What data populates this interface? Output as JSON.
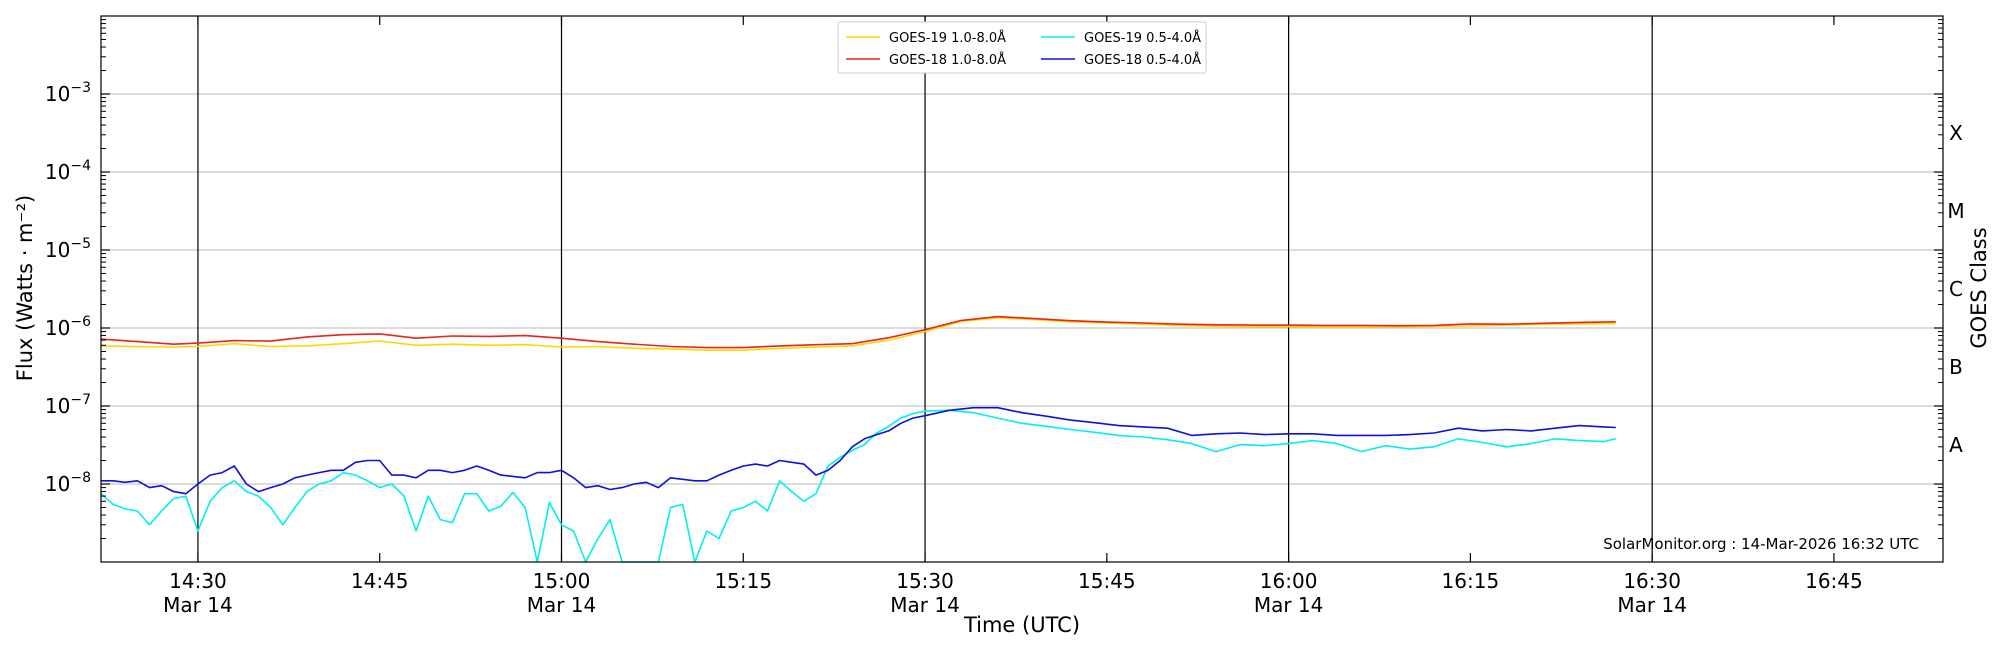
{
  "chart_data": {
    "type": "line",
    "xlabel": "Time (UTC)",
    "ylabel": "Flux (Watts · m⁻²)",
    "right_ylabel": "GOES Class",
    "credit": "SolarMonitor.org : 14-Mar-2026 16:32 UTC",
    "x_start": "14:22",
    "x_end": "16:54",
    "log_scale_y": true,
    "ylim": [
      1e-09,
      0.01
    ],
    "grid": "horizontal",
    "legend_placement": "top-center",
    "x_ticks": [
      {
        "t": "14:30",
        "line1": "14:30",
        "line2": "Mar 14",
        "vline": true
      },
      {
        "t": "14:45",
        "line1": "14:45",
        "line2": "",
        "vline": false
      },
      {
        "t": "15:00",
        "line1": "15:00",
        "line2": "Mar 14",
        "vline": true
      },
      {
        "t": "15:15",
        "line1": "15:15",
        "line2": "",
        "vline": false
      },
      {
        "t": "15:30",
        "line1": "15:30",
        "line2": "Mar 14",
        "vline": true
      },
      {
        "t": "15:45",
        "line1": "15:45",
        "line2": "",
        "vline": false
      },
      {
        "t": "16:00",
        "line1": "16:00",
        "line2": "Mar 14",
        "vline": true
      },
      {
        "t": "16:15",
        "line1": "16:15",
        "line2": "",
        "vline": false
      },
      {
        "t": "16:30",
        "line1": "16:30",
        "line2": "Mar 14",
        "vline": true
      },
      {
        "t": "16:45",
        "line1": "16:45",
        "line2": "",
        "vline": false
      }
    ],
    "y_ticks": [
      {
        "exp": -3,
        "label": "10−3"
      },
      {
        "exp": -4,
        "label": "10−4"
      },
      {
        "exp": -5,
        "label": "10−5"
      },
      {
        "exp": -6,
        "label": "10−6"
      },
      {
        "exp": -7,
        "label": "10−7"
      },
      {
        "exp": -8,
        "label": "10−8"
      }
    ],
    "goes_classes": [
      {
        "label": "X",
        "exp": -3.5
      },
      {
        "label": "M",
        "exp": -4.5
      },
      {
        "label": "C",
        "exp": -5.5
      },
      {
        "label": "B",
        "exp": -6.5
      },
      {
        "label": "A",
        "exp": -7.5
      }
    ],
    "series": [
      {
        "name": "GOES-19 1.0-8.0Å",
        "color": "#FFD700",
        "x": [
          "14:22",
          "14:25",
          "14:28",
          "14:30",
          "14:33",
          "14:36",
          "14:39",
          "14:42",
          "14:45",
          "14:48",
          "14:51",
          "14:54",
          "14:57",
          "15:00",
          "15:03",
          "15:06",
          "15:09",
          "15:12",
          "15:15",
          "15:18",
          "15:21",
          "15:24",
          "15:27",
          "15:30",
          "15:33",
          "15:36",
          "15:39",
          "15:42",
          "15:45",
          "15:48",
          "15:51",
          "15:54",
          "15:57",
          "16:00",
          "16:03",
          "16:06",
          "16:09",
          "16:12",
          "16:15",
          "16:18",
          "16:21",
          "16:24",
          "16:27"
        ],
        "y": [
          5.9e-07,
          5.8e-07,
          5.7e-07,
          5.8e-07,
          6.3e-07,
          5.8e-07,
          5.9e-07,
          6.3e-07,
          6.8e-07,
          6e-07,
          6.2e-07,
          6e-07,
          6.1e-07,
          5.7e-07,
          5.8e-07,
          5.5e-07,
          5.4e-07,
          5.2e-07,
          5.2e-07,
          5.5e-07,
          5.7e-07,
          5.9e-07,
          7e-07,
          9e-07,
          1.22e-06,
          1.35e-06,
          1.28e-06,
          1.2e-06,
          1.16e-06,
          1.12e-06,
          1.08e-06,
          1.05e-06,
          1.04e-06,
          1.04e-06,
          1.03e-06,
          1.03e-06,
          1.04e-06,
          1.05e-06,
          1.06e-06,
          1.09e-06,
          1.12e-06,
          1.13e-06,
          1.14e-06
        ]
      },
      {
        "name": "GOES-18 1.0-8.0Å",
        "color": "#E8251C",
        "x": [
          "14:22",
          "14:25",
          "14:28",
          "14:30",
          "14:33",
          "14:36",
          "14:39",
          "14:42",
          "14:45",
          "14:48",
          "14:51",
          "14:54",
          "14:57",
          "15:00",
          "15:03",
          "15:06",
          "15:09",
          "15:12",
          "15:15",
          "15:18",
          "15:21",
          "15:24",
          "15:27",
          "15:30",
          "15:33",
          "15:36",
          "15:39",
          "15:42",
          "15:45",
          "15:48",
          "15:51",
          "15:54",
          "15:57",
          "16:00",
          "16:03",
          "16:06",
          "16:09",
          "16:12",
          "16:15",
          "16:18",
          "16:21",
          "16:24",
          "16:27"
        ],
        "y": [
          7.2e-07,
          6.7e-07,
          6.2e-07,
          6.4e-07,
          6.9e-07,
          6.8e-07,
          7.7e-07,
          8.2e-07,
          8.4e-07,
          7.4e-07,
          7.9e-07,
          7.8e-07,
          8e-07,
          7.4e-07,
          6.7e-07,
          6.2e-07,
          5.8e-07,
          5.6e-07,
          5.6e-07,
          5.9e-07,
          6.1e-07,
          6.3e-07,
          7.5e-07,
          9.5e-07,
          1.25e-06,
          1.4e-06,
          1.32e-06,
          1.24e-06,
          1.19e-06,
          1.16e-06,
          1.12e-06,
          1.1e-06,
          1.09e-06,
          1.09e-06,
          1.08e-06,
          1.08e-06,
          1.07e-06,
          1.08e-06,
          1.13e-06,
          1.12e-06,
          1.15e-06,
          1.18e-06,
          1.2e-06
        ]
      },
      {
        "name": "GOES-19 0.5-4.0Å",
        "color": "#00F0F0",
        "x": [
          "14:22",
          "14:23",
          "14:24",
          "14:25",
          "14:26",
          "14:27",
          "14:28",
          "14:29",
          "14:30",
          "14:31",
          "14:32",
          "14:33",
          "14:34",
          "14:35",
          "14:36",
          "14:37",
          "14:38",
          "14:39",
          "14:40",
          "14:41",
          "14:42",
          "14:43",
          "14:44",
          "14:45",
          "14:46",
          "14:47",
          "14:48",
          "14:49",
          "14:50",
          "14:51",
          "14:52",
          "14:53",
          "14:54",
          "14:55",
          "14:56",
          "14:57",
          "14:58",
          "14:59",
          "15:00",
          "15:01",
          "15:02",
          "15:03",
          "15:04",
          "15:05",
          "15:06",
          "15:07",
          "15:08",
          "15:09",
          "15:10",
          "15:11",
          "15:12",
          "15:13",
          "15:14",
          "15:15",
          "15:16",
          "15:17",
          "15:18",
          "15:19",
          "15:20",
          "15:21",
          "15:22",
          "15:23",
          "15:24",
          "15:25",
          "15:26",
          "15:27",
          "15:28",
          "15:29",
          "15:30",
          "15:32",
          "15:34",
          "15:36",
          "15:38",
          "15:40",
          "15:42",
          "15:44",
          "15:46",
          "15:48",
          "15:50",
          "15:52",
          "15:54",
          "15:56",
          "15:58",
          "16:00",
          "16:02",
          "16:04",
          "16:06",
          "16:08",
          "16:10",
          "16:12",
          "16:14",
          "16:16",
          "16:18",
          "16:20",
          "16:22",
          "16:24",
          "16:26",
          "16:27"
        ],
        "y": [
          7.5e-09,
          5.5e-09,
          4.8e-09,
          4.5e-09,
          3e-09,
          4.5e-09,
          6.5e-09,
          7e-09,
          2.5e-09,
          6e-09,
          9e-09,
          1.1e-08,
          8e-09,
          7e-09,
          5e-09,
          3e-09,
          5e-09,
          8e-09,
          1e-08,
          1.1e-08,
          1.4e-08,
          1.3e-08,
          1.1e-08,
          9e-09,
          1e-08,
          7e-09,
          2.5e-09,
          7e-09,
          3.5e-09,
          3.2e-09,
          7.5e-09,
          7.5e-09,
          4.5e-09,
          5.2e-09,
          7.8e-09,
          5e-09,
          1e-09,
          5.8e-09,
          3e-09,
          2.5e-09,
          1e-09,
          2e-09,
          3.5e-09,
          1e-09,
          1e-09,
          1e-09,
          1e-09,
          5e-09,
          5.5e-09,
          1e-09,
          2.5e-09,
          2e-09,
          4.5e-09,
          5e-09,
          6e-09,
          4.5e-09,
          1.1e-08,
          8e-09,
          6e-09,
          7.5e-09,
          1.7e-08,
          2.2e-08,
          2.7e-08,
          3.2e-08,
          4.5e-08,
          5.5e-08,
          7e-08,
          8e-08,
          8.6e-08,
          8.8e-08,
          8.2e-08,
          7e-08,
          6e-08,
          5.5e-08,
          5e-08,
          4.6e-08,
          4.2e-08,
          4e-08,
          3.7e-08,
          3.3e-08,
          2.6e-08,
          3.2e-08,
          3.1e-08,
          3.3e-08,
          3.6e-08,
          3.3e-08,
          2.6e-08,
          3.1e-08,
          2.8e-08,
          3e-08,
          3.8e-08,
          3.4e-08,
          3e-08,
          3.3e-08,
          3.8e-08,
          3.6e-08,
          3.5e-08,
          3.8e-08
        ]
      },
      {
        "name": "GOES-18 0.5-4.0Å",
        "color": "#1010D8",
        "x": [
          "14:22",
          "14:23",
          "14:24",
          "14:25",
          "14:26",
          "14:27",
          "14:28",
          "14:29",
          "14:30",
          "14:31",
          "14:32",
          "14:33",
          "14:34",
          "14:35",
          "14:36",
          "14:37",
          "14:38",
          "14:39",
          "14:40",
          "14:41",
          "14:42",
          "14:43",
          "14:44",
          "14:45",
          "14:46",
          "14:47",
          "14:48",
          "14:49",
          "14:50",
          "14:51",
          "14:52",
          "14:53",
          "14:54",
          "14:55",
          "14:56",
          "14:57",
          "14:58",
          "14:59",
          "15:00",
          "15:01",
          "15:02",
          "15:03",
          "15:04",
          "15:05",
          "15:06",
          "15:07",
          "15:08",
          "15:09",
          "15:10",
          "15:11",
          "15:12",
          "15:13",
          "15:14",
          "15:15",
          "15:16",
          "15:17",
          "15:18",
          "15:19",
          "15:20",
          "15:21",
          "15:22",
          "15:23",
          "15:24",
          "15:25",
          "15:26",
          "15:27",
          "15:28",
          "15:29",
          "15:30",
          "15:32",
          "15:34",
          "15:36",
          "15:38",
          "15:40",
          "15:42",
          "15:44",
          "15:46",
          "15:48",
          "15:50",
          "15:52",
          "15:54",
          "15:56",
          "15:58",
          "16:00",
          "16:02",
          "16:04",
          "16:06",
          "16:08",
          "16:10",
          "16:12",
          "16:14",
          "16:16",
          "16:18",
          "16:20",
          "16:22",
          "16:24",
          "16:26",
          "16:27"
        ],
        "y": [
          1.1e-08,
          1.1e-08,
          1.05e-08,
          1.1e-08,
          9e-09,
          9.5e-09,
          8e-09,
          7.5e-09,
          1e-08,
          1.3e-08,
          1.4e-08,
          1.7e-08,
          1e-08,
          8e-09,
          9e-09,
          1e-08,
          1.2e-08,
          1.3e-08,
          1.4e-08,
          1.5e-08,
          1.5e-08,
          1.9e-08,
          2e-08,
          2e-08,
          1.3e-08,
          1.3e-08,
          1.2e-08,
          1.5e-08,
          1.5e-08,
          1.4e-08,
          1.5e-08,
          1.7e-08,
          1.5e-08,
          1.3e-08,
          1.25e-08,
          1.2e-08,
          1.4e-08,
          1.4e-08,
          1.5e-08,
          1.2e-08,
          9e-09,
          9.5e-09,
          8.5e-09,
          9e-09,
          1e-08,
          1.05e-08,
          9e-09,
          1.2e-08,
          1.15e-08,
          1.1e-08,
          1.1e-08,
          1.3e-08,
          1.5e-08,
          1.7e-08,
          1.8e-08,
          1.7e-08,
          2e-08,
          1.9e-08,
          1.8e-08,
          1.3e-08,
          1.5e-08,
          2e-08,
          3e-08,
          3.8e-08,
          4.3e-08,
          4.8e-08,
          6e-08,
          7e-08,
          7.5e-08,
          8.8e-08,
          9.5e-08,
          9.5e-08,
          8.2e-08,
          7.4e-08,
          6.6e-08,
          6.1e-08,
          5.6e-08,
          5.4e-08,
          5.2e-08,
          4.2e-08,
          4.4e-08,
          4.5e-08,
          4.3e-08,
          4.4e-08,
          4.4e-08,
          4.2e-08,
          4.2e-08,
          4.2e-08,
          4.3e-08,
          4.5e-08,
          5.2e-08,
          4.8e-08,
          5e-08,
          4.8e-08,
          5.2e-08,
          5.6e-08,
          5.4e-08,
          5.3e-08
        ]
      }
    ]
  }
}
